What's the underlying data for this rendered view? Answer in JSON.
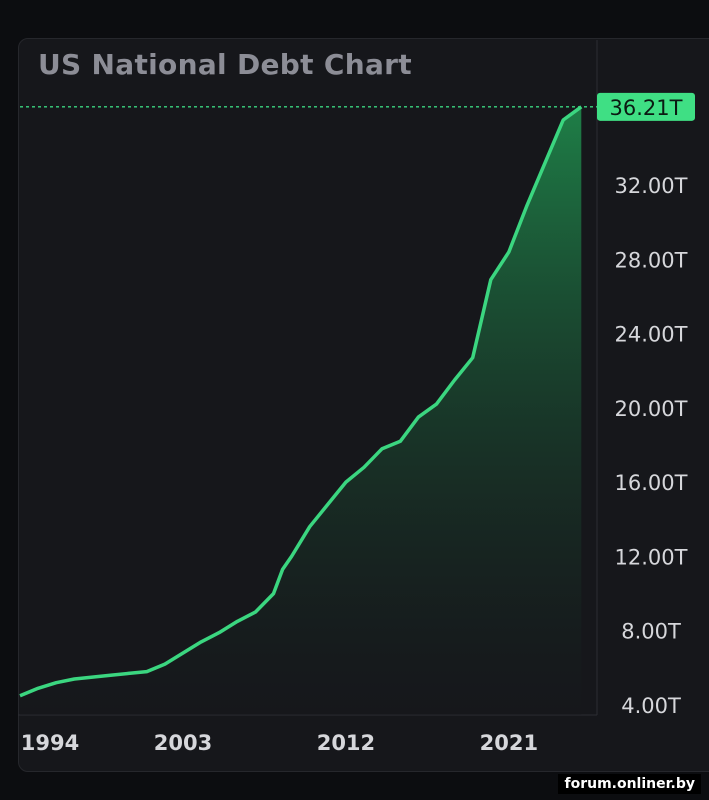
{
  "colors": {
    "line": "#3bd680",
    "area_top": "#1f8a4c",
    "area_bottom": "#16171b",
    "dashed": "#3bd680",
    "label_bg": "#3fdf84"
  },
  "chart_data": {
    "type": "area",
    "title": "US National Debt Chart",
    "xlabel": "",
    "ylabel": "",
    "x_ticks": [
      "1994",
      "2003",
      "2012",
      "2021"
    ],
    "y_ticks": [
      "4.00T",
      "8.00T",
      "12.00T",
      "16.00T",
      "20.00T",
      "24.00T",
      "28.00T",
      "32.00T"
    ],
    "ylim": [
      4,
      36.5
    ],
    "xlim": [
      1994,
      2025.7
    ],
    "last_value_label": "36.21T",
    "grid": false,
    "series": [
      {
        "values": [
          [
            1994,
            4.5
          ],
          [
            1995,
            4.9
          ],
          [
            1996,
            5.2
          ],
          [
            1997,
            5.4
          ],
          [
            1998,
            5.5
          ],
          [
            1999,
            5.6
          ],
          [
            2000,
            5.7
          ],
          [
            2001,
            5.8
          ],
          [
            2002,
            6.2
          ],
          [
            2003,
            6.8
          ],
          [
            2004,
            7.4
          ],
          [
            2005,
            7.9
          ],
          [
            2006,
            8.5
          ],
          [
            2007,
            9.0
          ],
          [
            2008,
            10.0
          ],
          [
            2008.5,
            11.3
          ],
          [
            2009,
            12.0
          ],
          [
            2010,
            13.6
          ],
          [
            2011,
            14.8
          ],
          [
            2012,
            16.0
          ],
          [
            2013,
            16.8
          ],
          [
            2014,
            17.8
          ],
          [
            2015,
            18.2
          ],
          [
            2016,
            19.5
          ],
          [
            2017,
            20.2
          ],
          [
            2018,
            21.5
          ],
          [
            2019,
            22.7
          ],
          [
            2020,
            26.9
          ],
          [
            2021,
            28.4
          ],
          [
            2022,
            30.9
          ],
          [
            2023,
            33.2
          ],
          [
            2024,
            35.5
          ],
          [
            2025,
            36.21
          ]
        ]
      }
    ]
  },
  "source": "forum.onliner.by"
}
